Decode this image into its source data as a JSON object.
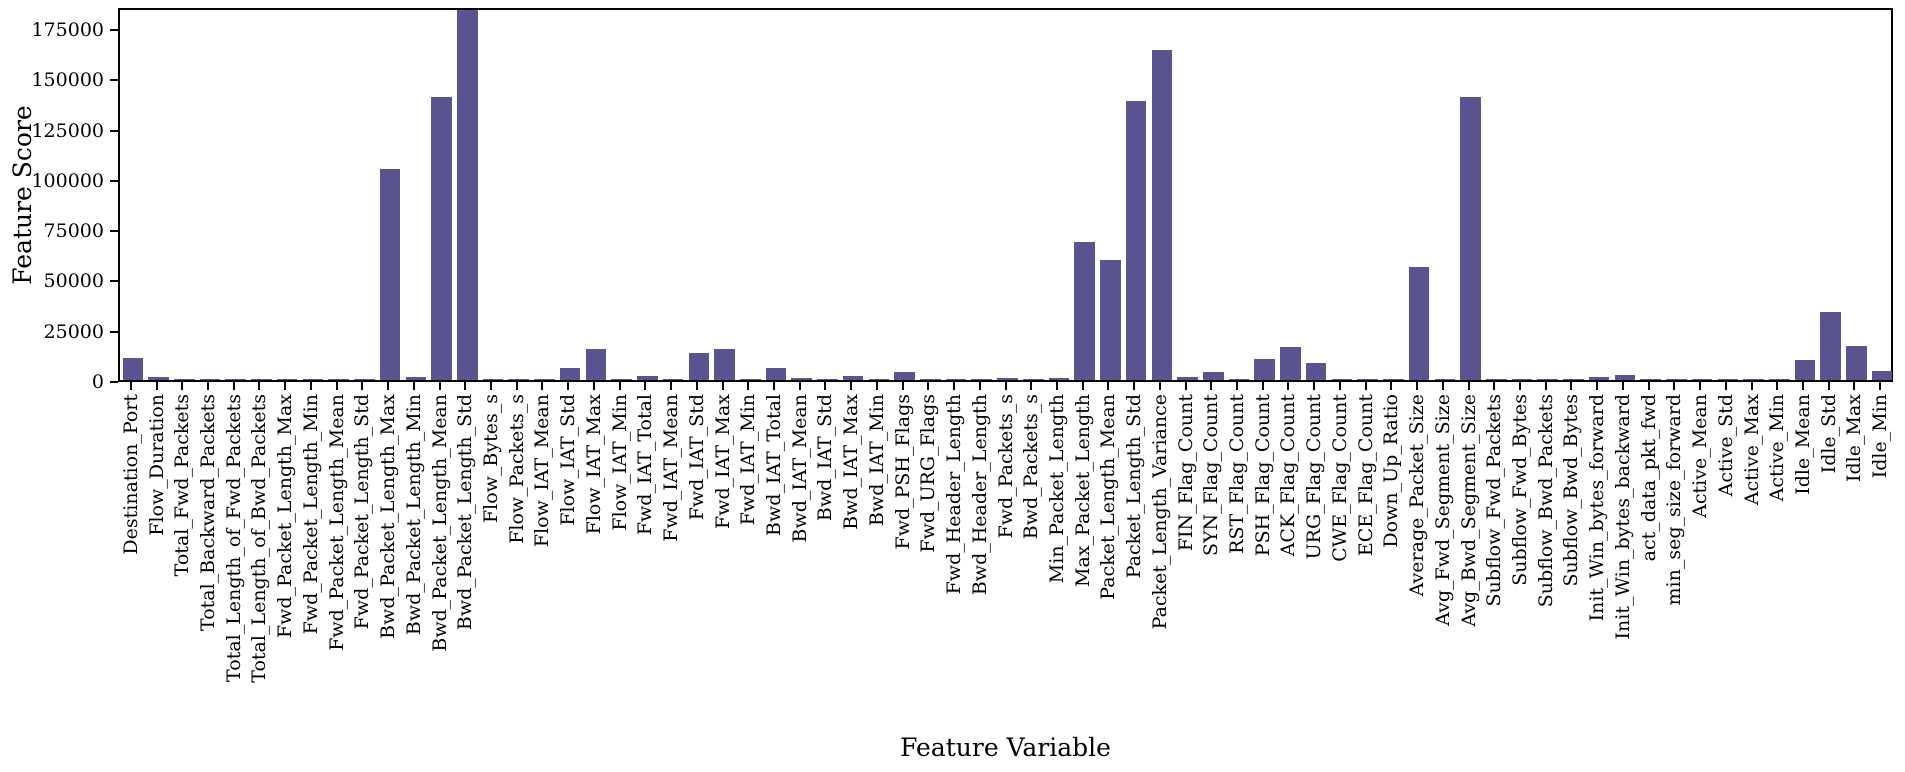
{
  "chart_data": {
    "type": "bar",
    "title": "",
    "xlabel": "Feature Variable",
    "ylabel": "Feature Score",
    "ylim": [
      0,
      186000
    ],
    "yticks": [
      0,
      25000,
      50000,
      75000,
      100000,
      125000,
      150000,
      175000
    ],
    "grid": false,
    "legend": "none",
    "bar_color": "#5a5591",
    "axis_color": "#000000",
    "background_color": "#ffffff",
    "categories": [
      "Destination_Port",
      "Flow_Duration",
      "Total_Fwd_Packets",
      "Total_Backward_Packets",
      "Total_Length_of_Fwd_Packets",
      "Total_Length_of_Bwd_Packets",
      "Fwd_Packet_Length_Max",
      "Fwd_Packet_Length_Min",
      "Fwd_Packet_Length_Mean",
      "Fwd_Packet_Length_Std",
      "Bwd_Packet_Length_Max",
      "Bwd_Packet_Length_Min",
      "Bwd_Packet_Length_Mean",
      "Bwd_Packet_Length_Std",
      "Flow_Bytes_s",
      "Flow_Packets_s",
      "Flow_IAT_Mean",
      "Flow_IAT_Std",
      "Flow_IAT_Max",
      "Flow_IAT_Min",
      "Fwd_IAT_Total",
      "Fwd_IAT_Mean",
      "Fwd_IAT_Std",
      "Fwd_IAT_Max",
      "Fwd_IAT_Min",
      "Bwd_IAT_Total",
      "Bwd_IAT_Mean",
      "Bwd_IAT_Std",
      "Bwd_IAT_Max",
      "Bwd_IAT_Min",
      "Fwd_PSH_Flags",
      "Fwd_URG_Flags",
      "Fwd_Header_Length",
      "Bwd_Header_Length",
      "Fwd_Packets_s",
      "Bwd_Packets_s",
      "Min_Packet_Length",
      "Max_Packet_Length",
      "Packet_Length_Mean",
      "Packet_Length_Std",
      "Packet_Length_Variance",
      "FIN_Flag_Count",
      "SYN_Flag_Count",
      "RST_Flag_Count",
      "PSH_Flag_Count",
      "ACK_Flag_Count",
      "URG_Flag_Count",
      "CWE_Flag_Count",
      "ECE_Flag_Count",
      "Down_Up_Ratio",
      "Average_Packet_Size",
      "Avg_Fwd_Segment_Size",
      "Avg_Bwd_Segment_Size",
      "Subflow_Fwd_Packets",
      "Subflow_Fwd_Bytes",
      "Subflow_Bwd_Packets",
      "Subflow_Bwd_Bytes",
      "Init_Win_bytes_forward",
      "Init_Win_bytes_backward",
      "act_data_pkt_fwd",
      "min_seg_size_forward",
      "Active_Mean",
      "Active_Std",
      "Active_Max",
      "Active_Min",
      "Idle_Mean",
      "Idle_Std",
      "Idle_Max",
      "Idle_Min"
    ],
    "values": [
      11000,
      1500,
      250,
      250,
      500,
      700,
      700,
      100,
      500,
      700,
      105000,
      1500,
      140500,
      184000,
      100,
      200,
      400,
      6000,
      15500,
      400,
      2000,
      400,
      13500,
      15500,
      400,
      6000,
      1000,
      500,
      2000,
      400,
      4000,
      50,
      250,
      400,
      1200,
      500,
      800,
      68500,
      59500,
      139000,
      164000,
      1500,
      4000,
      250,
      10500,
      16500,
      8500,
      100,
      250,
      400,
      56000,
      500,
      140500,
      250,
      500,
      250,
      700,
      1500,
      2500,
      250,
      400,
      250,
      100,
      400,
      250,
      10000,
      34000,
      17000,
      4500
    ]
  }
}
